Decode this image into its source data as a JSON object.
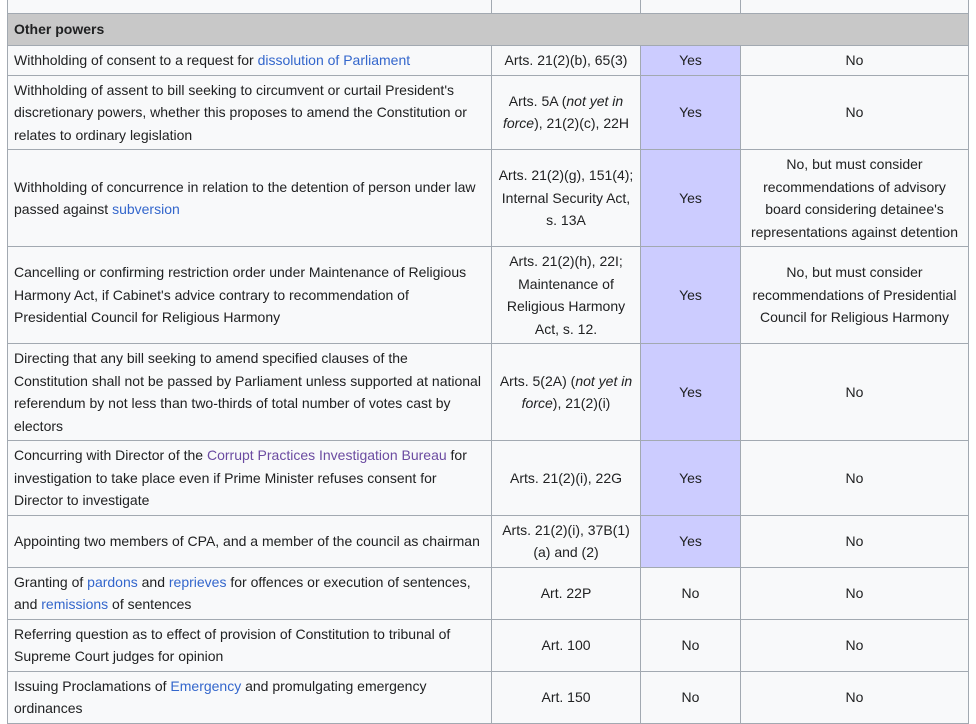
{
  "section": "Other powers",
  "rows": [
    {
      "seg": [
        {
          "t": "Withholding of consent to a request for "
        },
        {
          "t": "dissolution of Parliament",
          "link": true
        }
      ],
      "arts": [
        {
          "t": "Arts. 21(2)(b), 65(3)"
        }
      ],
      "col3": "Yes",
      "col4": "No"
    },
    {
      "seg": [
        {
          "t": "Withholding of assent to bill seeking to circumvent or curtail President's discretionary powers, whether this proposes to amend the Constitution or relates to ordinary legislation"
        }
      ],
      "arts": [
        {
          "t": "Arts. 5A ("
        },
        {
          "t": "not yet in force",
          "i": true
        },
        {
          "t": "), 21(2)(c), 22H"
        }
      ],
      "col3": "Yes",
      "col4": "No"
    },
    {
      "seg": [
        {
          "t": "Withholding of concurrence in relation to the detention of person under law passed against "
        },
        {
          "t": "subversion",
          "link": true
        }
      ],
      "arts": [
        {
          "t": "Arts. 21(2)(g), 151(4); Internal Security Act, s. 13A"
        }
      ],
      "col3": "Yes",
      "col4": "No, but must consider recommendations of advisory board considering detainee's representations against detention"
    },
    {
      "seg": [
        {
          "t": "Cancelling or confirming restriction order under Maintenance of Religious Harmony Act, if Cabinet's advice contrary to recommendation of Presidential Council for Religious Harmony"
        }
      ],
      "arts": [
        {
          "t": "Arts. 21(2)(h), 22I; Maintenance of Religious Harmony Act, s. 12."
        }
      ],
      "col3": "Yes",
      "col4": "No, but must consider recommendations of Presidential Council for Religious Harmony"
    },
    {
      "seg": [
        {
          "t": "Directing that any bill seeking to amend specified clauses of the Constitution shall not be passed by Parliament unless supported at national referendum by not less than two-thirds of total number of votes cast by electors"
        }
      ],
      "arts": [
        {
          "t": "Arts. 5(2A) ("
        },
        {
          "t": "not yet in force",
          "i": true
        },
        {
          "t": "), 21(2)(i)"
        }
      ],
      "col3": "Yes",
      "col4": "No"
    },
    {
      "seg": [
        {
          "t": "Concurring with Director of the "
        },
        {
          "t": "Corrupt Practices Investigation Bureau",
          "link": true,
          "visited": true
        },
        {
          "t": " for investigation to take place even if Prime Minister refuses consent for Director to investigate"
        }
      ],
      "arts": [
        {
          "t": "Arts. 21(2)(i), 22G"
        }
      ],
      "col3": "Yes",
      "col4": "No"
    },
    {
      "seg": [
        {
          "t": "Appointing two members of CPA, and a member of the council as chairman"
        }
      ],
      "arts": [
        {
          "t": "Arts. 21(2)(i), 37B(1) (a) and (2)"
        }
      ],
      "col3": "Yes",
      "col4": "No"
    },
    {
      "seg": [
        {
          "t": "Granting of "
        },
        {
          "t": "pardons",
          "link": true
        },
        {
          "t": " and "
        },
        {
          "t": "reprieves",
          "link": true
        },
        {
          "t": " for offences or execution of sentences, and "
        },
        {
          "t": "remissions",
          "link": true
        },
        {
          "t": " of sentences"
        }
      ],
      "arts": [
        {
          "t": "Art. 22P"
        }
      ],
      "col3": "No",
      "col4": "No"
    },
    {
      "seg": [
        {
          "t": "Referring question as to effect of provision of Constitution to tribunal of Supreme Court judges for opinion"
        }
      ],
      "arts": [
        {
          "t": "Art. 100"
        }
      ],
      "col3": "No",
      "col4": "No"
    },
    {
      "seg": [
        {
          "t": "Issuing Proclamations of "
        },
        {
          "t": "Emergency",
          "link": true
        },
        {
          "t": " and promulgating emergency ordinances"
        }
      ],
      "arts": [
        {
          "t": "Art. 150"
        }
      ],
      "col3": "No",
      "col4": "No"
    }
  ]
}
